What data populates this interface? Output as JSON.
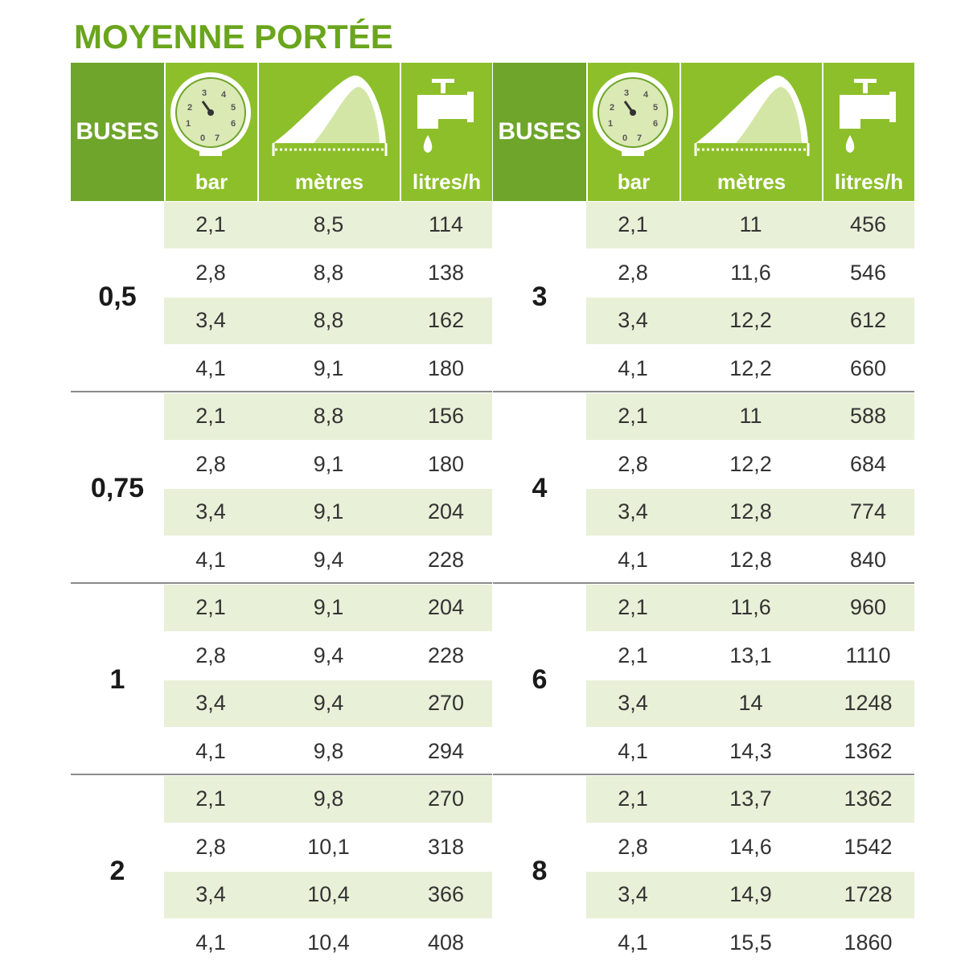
{
  "title": "MOYENNE PORTÉE",
  "gauge_digits": [
    "1",
    "2",
    "3",
    "4",
    "5",
    "6",
    "7",
    "0"
  ],
  "tables": [
    {
      "header": {
        "buses": "BUSES",
        "bar": "bar",
        "metres": "mètres",
        "litres": "litres/h"
      },
      "groups": [
        {
          "buse": "0,5",
          "rows": [
            [
              "2,1",
              "8,5",
              "114"
            ],
            [
              "2,8",
              "8,8",
              "138"
            ],
            [
              "3,4",
              "8,8",
              "162"
            ],
            [
              "4,1",
              "9,1",
              "180"
            ]
          ]
        },
        {
          "buse": "0,75",
          "rows": [
            [
              "2,1",
              "8,8",
              "156"
            ],
            [
              "2,8",
              "9,1",
              "180"
            ],
            [
              "3,4",
              "9,1",
              "204"
            ],
            [
              "4,1",
              "9,4",
              "228"
            ]
          ]
        },
        {
          "buse": "1",
          "rows": [
            [
              "2,1",
              "9,1",
              "204"
            ],
            [
              "2,8",
              "9,4",
              "228"
            ],
            [
              "3,4",
              "9,4",
              "270"
            ],
            [
              "4,1",
              "9,8",
              "294"
            ]
          ]
        },
        {
          "buse": "2",
          "rows": [
            [
              "2,1",
              "9,8",
              "270"
            ],
            [
              "2,8",
              "10,1",
              "318"
            ],
            [
              "3,4",
              "10,4",
              "366"
            ],
            [
              "4,1",
              "10,4",
              "408"
            ]
          ]
        }
      ]
    },
    {
      "header": {
        "buses": "BUSES",
        "bar": "bar",
        "metres": "mètres",
        "litres": "litres/h"
      },
      "groups": [
        {
          "buse": "3",
          "rows": [
            [
              "2,1",
              "11",
              "456"
            ],
            [
              "2,8",
              "11,6",
              "546"
            ],
            [
              "3,4",
              "12,2",
              "612"
            ],
            [
              "4,1",
              "12,2",
              "660"
            ]
          ]
        },
        {
          "buse": "4",
          "rows": [
            [
              "2,1",
              "11",
              "588"
            ],
            [
              "2,8",
              "12,2",
              "684"
            ],
            [
              "3,4",
              "12,8",
              "774"
            ],
            [
              "4,1",
              "12,8",
              "840"
            ]
          ]
        },
        {
          "buse": "6",
          "rows": [
            [
              "2,1",
              "11,6",
              "960"
            ],
            [
              "2,1",
              "13,1",
              "1110"
            ],
            [
              "3,4",
              "14",
              "1248"
            ],
            [
              "4,1",
              "14,3",
              "1362"
            ]
          ]
        },
        {
          "buse": "8",
          "rows": [
            [
              "2,1",
              "13,7",
              "1362"
            ],
            [
              "2,8",
              "14,6",
              "1542"
            ],
            [
              "3,4",
              "14,9",
              "1728"
            ],
            [
              "4,1",
              "15,5",
              "1860"
            ]
          ]
        }
      ]
    }
  ]
}
